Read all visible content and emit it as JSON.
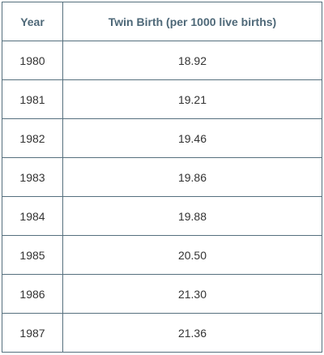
{
  "table": {
    "header": [
      "Year",
      "Twin Birth (per 1000 live births)"
    ],
    "rows": [
      [
        "1980",
        "18.92"
      ],
      [
        "1981",
        "19.21"
      ],
      [
        "1982",
        "19.46"
      ],
      [
        "1983",
        "19.86"
      ],
      [
        "1984",
        "19.88"
      ],
      [
        "1985",
        "20.50"
      ],
      [
        "1986",
        "21.30"
      ],
      [
        "1987",
        "21.36"
      ]
    ]
  }
}
